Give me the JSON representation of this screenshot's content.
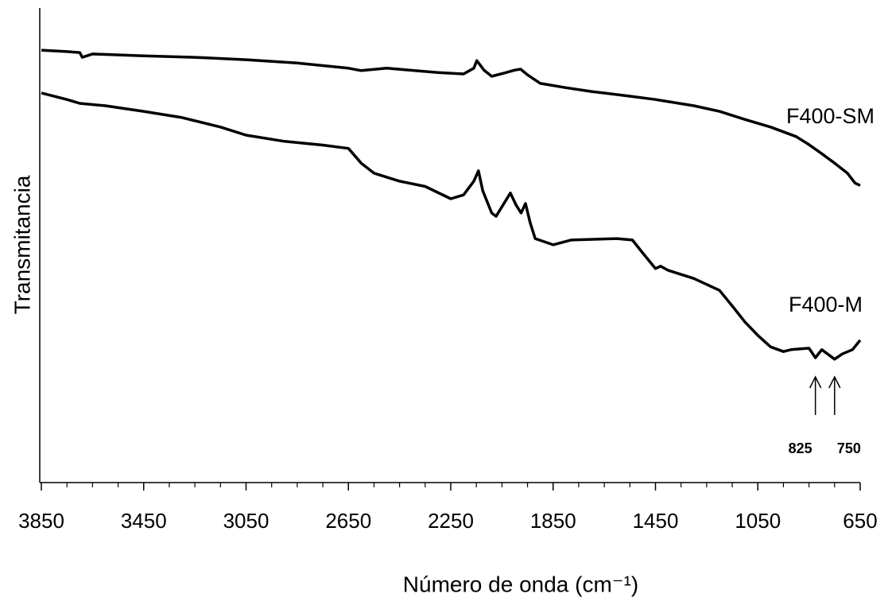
{
  "chart_data": {
    "type": "line",
    "xlabel": "Número de onda  (cm⁻¹)",
    "ylabel": "Transmitancia",
    "xlim": [
      3850,
      650
    ],
    "xticks": [
      3850,
      3450,
      3050,
      2650,
      2250,
      1850,
      1450,
      1050,
      650
    ],
    "xminorticks": [
      3750,
      3650,
      3550,
      3350,
      3250,
      3150,
      2950,
      2850,
      2750,
      2550,
      2450,
      2350,
      2150,
      2050,
      1950,
      1750,
      1650,
      1550,
      1350,
      1250,
      1150,
      950,
      850,
      750
    ],
    "ylim": [
      0,
      100
    ],
    "series": [
      {
        "name": "F400-SM",
        "color": "#000000",
        "x": [
          3850,
          3750,
          3700,
          3690,
          3650,
          3450,
          3250,
          3050,
          2850,
          2650,
          2600,
          2500,
          2300,
          2200,
          2160,
          2148,
          2120,
          2090,
          2040,
          2000,
          1977,
          1950,
          1900,
          1800,
          1700,
          1550,
          1450,
          1300,
          1200,
          1100,
          1000,
          900,
          850,
          800,
          750,
          700,
          670,
          650
        ],
        "values": [
          91.1,
          90.8,
          90.6,
          89.6,
          90.3,
          89.9,
          89.6,
          89.1,
          88.4,
          87.3,
          86.8,
          87.3,
          86.4,
          86.1,
          87.3,
          88.9,
          86.9,
          85.6,
          86.3,
          86.9,
          87.1,
          85.9,
          84.1,
          83.2,
          82.4,
          81.4,
          80.7,
          79.4,
          78.2,
          76.5,
          74.9,
          72.9,
          71.2,
          69.3,
          67.3,
          65.2,
          63.1,
          62.6
        ]
      },
      {
        "name": "F400-M",
        "color": "#000000",
        "x": [
          3850,
          3750,
          3700,
          3600,
          3450,
          3300,
          3150,
          3050,
          2900,
          2750,
          2650,
          2600,
          2550,
          2450,
          2350,
          2250,
          2200,
          2160,
          2142,
          2125,
          2090,
          2073,
          2040,
          2017,
          1995,
          1975,
          1958,
          1940,
          1920,
          1850,
          1780,
          1600,
          1540,
          1500,
          1450,
          1430,
          1400,
          1300,
          1200,
          1150,
          1100,
          1050,
          1000,
          950,
          920,
          850,
          825,
          800,
          750,
          720,
          680,
          650
        ],
        "values": [
          82.1,
          80.7,
          79.9,
          79.4,
          78.2,
          76.9,
          74.9,
          73.2,
          71.9,
          71.1,
          70.4,
          67.3,
          65.2,
          63.5,
          62.4,
          59.8,
          60.6,
          63.5,
          65.7,
          61.5,
          56.8,
          56.1,
          59.0,
          61.0,
          58.5,
          56.8,
          58.8,
          54.8,
          51.4,
          50.1,
          51.1,
          51.4,
          51.1,
          48.4,
          45.1,
          45.6,
          44.7,
          43.0,
          40.5,
          37.2,
          33.8,
          31.0,
          28.6,
          27.6,
          28.0,
          28.3,
          26.3,
          28.0,
          26.0,
          27.1,
          28.0,
          30.0
        ]
      }
    ],
    "annotations": [
      {
        "text": "825",
        "x": 825
      },
      {
        "text": "750",
        "x": 750
      }
    ]
  }
}
